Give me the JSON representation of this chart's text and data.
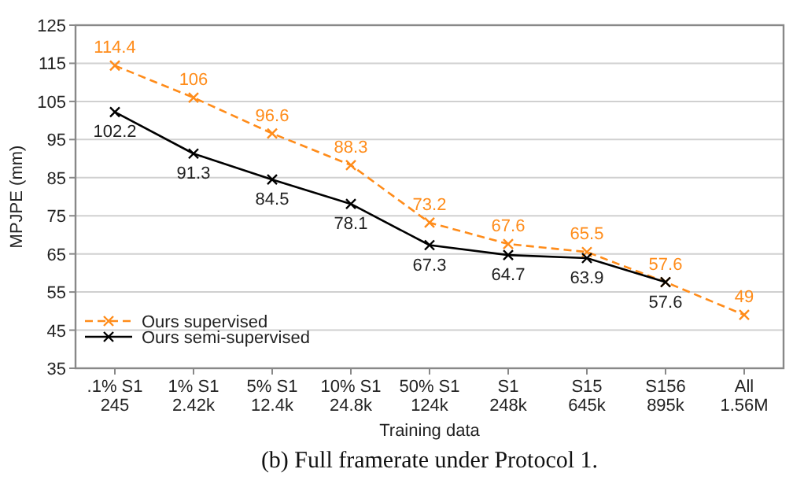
{
  "chart_data": {
    "type": "line",
    "xlabel": "Training data",
    "ylabel": "MPJPE (mm)",
    "annotations": [
      "(b) Full framerate under Protocol 1."
    ],
    "categories": [
      ".1% S1\n245",
      "1% S1\n2.42k",
      "5% S1\n12.4k",
      "10% S1\n24.8k",
      "50% S1\n124k",
      "S1\n248k",
      "S15\n645k",
      "S156\n895k",
      "All\n1.56M"
    ],
    "series": [
      {
        "name": "Ours supervised",
        "color": "#ff8c1a",
        "line_style": "dashed",
        "values": [
          114.4,
          106,
          96.6,
          88.3,
          73.2,
          67.6,
          65.5,
          57.6,
          49
        ]
      },
      {
        "name": "Ours semi-supervised",
        "color": "#000000",
        "line_style": "solid",
        "values": [
          102.2,
          91.3,
          84.5,
          78.1,
          67.3,
          64.7,
          63.9,
          57.6,
          null
        ]
      }
    ],
    "ylim": [
      35,
      125
    ],
    "yticks": [
      35,
      45,
      55,
      65,
      75,
      85,
      95,
      105,
      115,
      125
    ],
    "grid": "y",
    "legend": "bottom left",
    "marker": "cross",
    "data_labels": true
  }
}
